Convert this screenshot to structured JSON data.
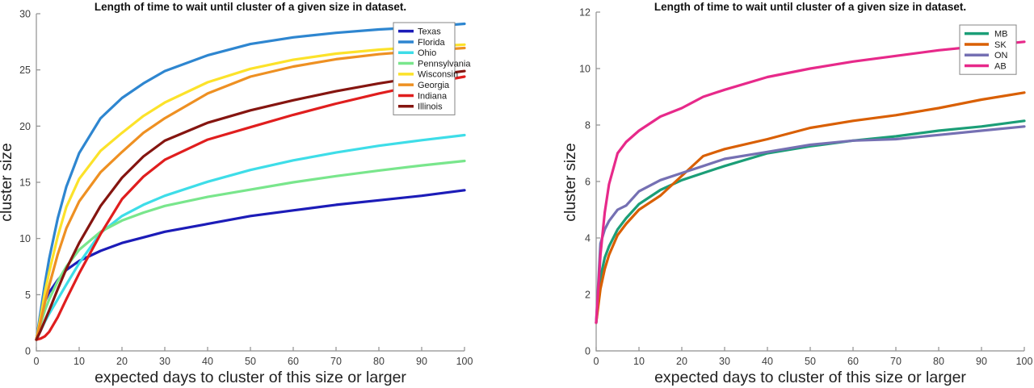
{
  "figure": {
    "background": "#ffffff",
    "style": {
      "axis_color": "#8f8f8f",
      "tick_label_color": "#3d3d3d",
      "title_color": "#111111",
      "axis_label_color": "#222222",
      "legend_border_color": "#848484",
      "legend_background": "#ffffff"
    }
  },
  "chart_data": [
    {
      "type": "line",
      "title": "Length of time to wait until cluster of a given size in dataset.",
      "xlabel": "expected days to cluster of this size or larger",
      "ylabel": "cluster size",
      "xlim": [
        0,
        100
      ],
      "ylim": [
        0,
        30
      ],
      "xticks": [
        0,
        10,
        20,
        30,
        40,
        50,
        60,
        70,
        80,
        90,
        100
      ],
      "yticks": [
        0,
        5,
        10,
        15,
        20,
        25,
        30
      ],
      "grid": false,
      "legend_position": "upper right inside",
      "x": [
        0,
        1,
        2,
        3,
        5,
        7,
        10,
        15,
        20,
        25,
        30,
        40,
        50,
        60,
        70,
        80,
        90,
        100
      ],
      "series": [
        {
          "name": "Texas",
          "color": "#1C1CB8",
          "values": [
            1,
            3.2,
            4.4,
            5.2,
            6.3,
            7.2,
            8.0,
            8.9,
            9.6,
            10.1,
            10.6,
            11.3,
            12.0,
            12.5,
            13.0,
            13.4,
            13.8,
            14.3
          ]
        },
        {
          "name": "Florida",
          "color": "#2E86D0",
          "values": [
            1,
            3.5,
            6.0,
            8.2,
            11.8,
            14.6,
            17.6,
            20.7,
            22.5,
            23.8,
            24.9,
            26.3,
            27.3,
            27.9,
            28.3,
            28.6,
            28.8,
            29.1
          ]
        },
        {
          "name": "Ohio",
          "color": "#3EDDE8",
          "values": [
            1,
            1.8,
            2.6,
            3.3,
            4.6,
            5.9,
            7.8,
            10.5,
            12.0,
            13.0,
            13.8,
            15.05,
            16.1,
            16.95,
            17.65,
            18.25,
            18.75,
            19.2
          ]
        },
        {
          "name": "Pennsylvania",
          "color": "#79E68C",
          "values": [
            1,
            2.4,
            3.6,
            4.6,
            6.2,
            7.5,
            9.0,
            10.6,
            11.6,
            12.3,
            12.9,
            13.7,
            14.35,
            15.0,
            15.55,
            16.05,
            16.5,
            16.9
          ]
        },
        {
          "name": "Wisconsin",
          "color": "#FCE22A",
          "values": [
            1,
            3.0,
            5.2,
            7.0,
            10.2,
            12.8,
            15.3,
            17.8,
            19.4,
            20.9,
            22.1,
            23.9,
            25.1,
            25.9,
            26.45,
            26.8,
            27.05,
            27.25
          ]
        },
        {
          "name": "Georgia",
          "color": "#EE9022",
          "values": [
            1,
            2.6,
            4.3,
            5.8,
            8.6,
            10.9,
            13.3,
            15.9,
            17.7,
            19.4,
            20.7,
            22.9,
            24.4,
            25.3,
            25.95,
            26.4,
            26.7,
            26.95
          ]
        },
        {
          "name": "Indiana",
          "color": "#E01E1E",
          "values": [
            1,
            1.1,
            1.3,
            1.7,
            3.0,
            4.6,
            6.9,
            10.4,
            13.5,
            15.5,
            17.0,
            18.8,
            19.9,
            21.0,
            22.0,
            22.9,
            23.7,
            24.4
          ]
        },
        {
          "name": "Illinois",
          "color": "#851510",
          "values": [
            1,
            1.8,
            2.7,
            3.6,
            5.5,
            7.3,
            9.6,
            12.9,
            15.4,
            17.3,
            18.7,
            20.3,
            21.4,
            22.3,
            23.1,
            23.8,
            24.4,
            24.9
          ]
        }
      ]
    },
    {
      "type": "line",
      "title": "Length of time to wait until cluster of a given size in dataset.",
      "xlabel": "expected days to cluster of this size or larger",
      "ylabel": "cluster size",
      "xlim": [
        0,
        100
      ],
      "ylim": [
        0,
        12
      ],
      "xticks": [
        0,
        10,
        20,
        30,
        40,
        50,
        60,
        70,
        80,
        90,
        100
      ],
      "yticks": [
        0,
        2,
        4,
        6,
        8,
        10,
        12
      ],
      "grid": false,
      "legend_position": "upper right inside",
      "x": [
        0,
        1,
        2,
        3,
        5,
        7,
        10,
        15,
        20,
        25,
        30,
        40,
        50,
        60,
        70,
        80,
        90,
        100
      ],
      "series": [
        {
          "name": "MB",
          "color": "#1B9E77",
          "values": [
            1,
            2.6,
            3.3,
            3.7,
            4.3,
            4.7,
            5.2,
            5.7,
            6.05,
            6.3,
            6.55,
            7.0,
            7.25,
            7.45,
            7.6,
            7.8,
            7.95,
            8.15
          ]
        },
        {
          "name": "SK",
          "color": "#D95F02",
          "values": [
            1,
            2.2,
            2.9,
            3.4,
            4.1,
            4.5,
            5.0,
            5.5,
            6.2,
            6.9,
            7.15,
            7.5,
            7.9,
            8.15,
            8.35,
            8.6,
            8.9,
            9.15
          ]
        },
        {
          "name": "ON",
          "color": "#7570B3",
          "values": [
            1,
            3.8,
            4.3,
            4.6,
            5.0,
            5.15,
            5.65,
            6.05,
            6.3,
            6.55,
            6.8,
            7.05,
            7.3,
            7.45,
            7.5,
            7.65,
            7.8,
            7.95
          ]
        },
        {
          "name": "AB",
          "color": "#E7298A",
          "values": [
            1,
            3.4,
            4.9,
            5.9,
            7.0,
            7.4,
            7.8,
            8.3,
            8.6,
            9.0,
            9.25,
            9.7,
            10.0,
            10.25,
            10.45,
            10.65,
            10.8,
            10.95
          ]
        }
      ]
    }
  ]
}
